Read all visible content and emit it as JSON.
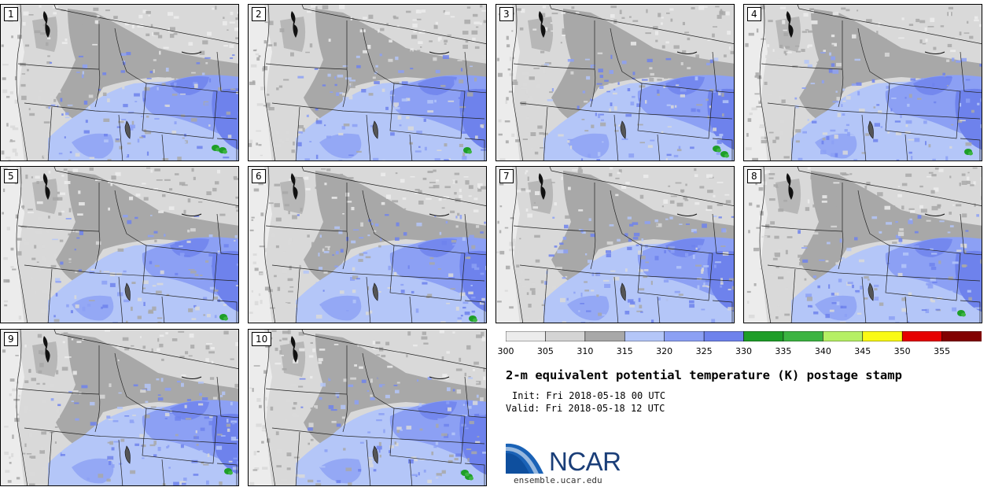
{
  "panels": [
    {
      "label": "1",
      "green_blobs": [
        [
          273,
          187
        ],
        [
          282,
          190
        ]
      ]
    },
    {
      "label": "2",
      "green_blobs": [
        [
          593,
          190
        ]
      ]
    },
    {
      "label": "3",
      "green_blobs": [
        [
          910,
          188
        ],
        [
          920,
          195
        ]
      ]
    },
    {
      "label": "4",
      "green_blobs": [
        [
          1230,
          192
        ]
      ]
    },
    {
      "label": "5",
      "green_blobs": [
        [
          283,
          402
        ]
      ]
    },
    {
      "label": "6",
      "green_blobs": [
        [
          600,
          404
        ]
      ]
    },
    {
      "label": "7",
      "green_blobs": []
    },
    {
      "label": "8",
      "green_blobs": [
        [
          1221,
          397
        ]
      ]
    },
    {
      "label": "9",
      "green_blobs": [
        [
          289,
          598
        ]
      ]
    },
    {
      "label": "10",
      "green_blobs": [
        [
          595,
          605
        ],
        [
          590,
          600
        ]
      ]
    }
  ],
  "colorbar": {
    "colors": [
      "#ececec",
      "#d4d4d4",
      "#a8a8a8",
      "#b4c6f8",
      "#8ca0f4",
      "#6e82ec",
      "#1e9e28",
      "#3cb442",
      "#b6f064",
      "#fafa14",
      "#e60000",
      "#820000"
    ],
    "tick_labels": [
      "300",
      "305",
      "310",
      "315",
      "320",
      "325",
      "330",
      "335",
      "340",
      "345",
      "350",
      "355"
    ]
  },
  "title": "2-m equivalent potential temperature (K) postage stamp",
  "init": "Init: Fri 2018-05-18 00 UTC",
  "valid": "Valid: Fri 2018-05-18 12 UTC",
  "logo": {
    "text": "NCAR",
    "color": "#1a3e78"
  },
  "website": "ensemble.ucar.edu"
}
